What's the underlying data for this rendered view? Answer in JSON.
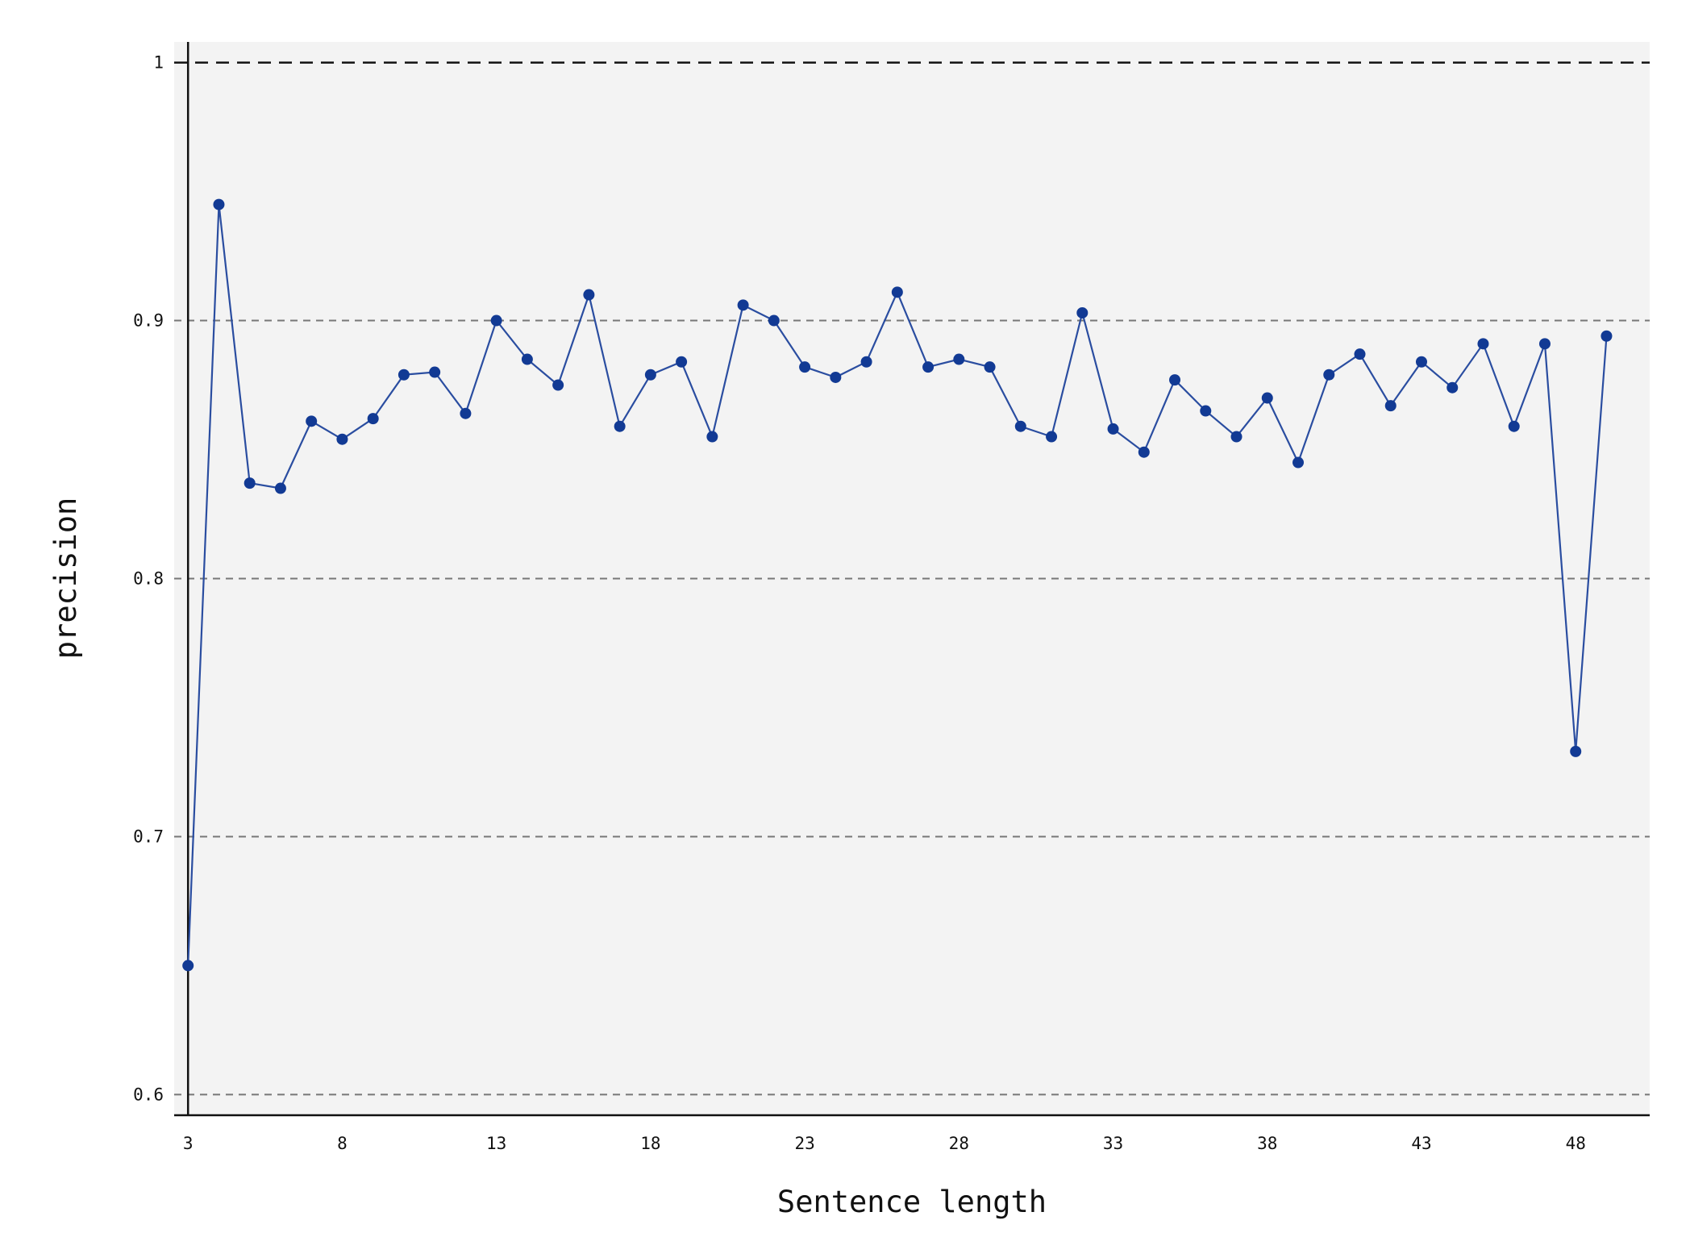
{
  "chart_data": {
    "type": "line",
    "title": "",
    "xlabel": "Sentence length",
    "ylabel": "precision",
    "xlim": [
      2.55,
      50.4
    ],
    "ylim": [
      0.592,
      1.008
    ],
    "x_ticks": [
      3,
      8,
      13,
      18,
      23,
      28,
      33,
      38,
      43,
      48
    ],
    "y_ticks": [
      0.6,
      0.7,
      0.8,
      0.9,
      1.0
    ],
    "y_tick_labels": [
      "0.6",
      "0.7",
      "0.8",
      "0.9",
      "1"
    ],
    "grid": true,
    "legend": "none",
    "reference_line": 1.0,
    "colors": {
      "plot_background": "#f3f3f3",
      "line": "#2a4da0",
      "marker": "#123a94",
      "grid": "#777777",
      "axis": "#111111"
    },
    "series": [
      {
        "x": [
          3,
          4,
          5,
          6,
          7,
          8,
          9,
          10,
          11,
          12,
          13,
          14,
          15,
          16,
          17,
          18,
          19,
          20,
          21,
          22,
          23,
          24,
          25,
          26,
          27,
          28,
          29,
          30,
          31,
          32,
          33,
          34,
          35,
          36,
          37,
          38,
          39,
          40,
          41,
          42,
          43,
          44,
          45,
          46,
          47,
          48,
          49
        ],
        "values": [
          0.65,
          0.945,
          0.837,
          0.835,
          0.861,
          0.854,
          0.862,
          0.879,
          0.88,
          0.864,
          0.9,
          0.885,
          0.875,
          0.91,
          0.859,
          0.879,
          0.884,
          0.855,
          0.906,
          0.9,
          0.882,
          0.878,
          0.884,
          0.911,
          0.882,
          0.885,
          0.882,
          0.859,
          0.855,
          0.903,
          0.858,
          0.849,
          0.877,
          0.865,
          0.855,
          0.87,
          0.845,
          0.879,
          0.887,
          0.867,
          0.884,
          0.874,
          0.891,
          0.859,
          0.891,
          0.733,
          0.894
        ]
      }
    ]
  }
}
